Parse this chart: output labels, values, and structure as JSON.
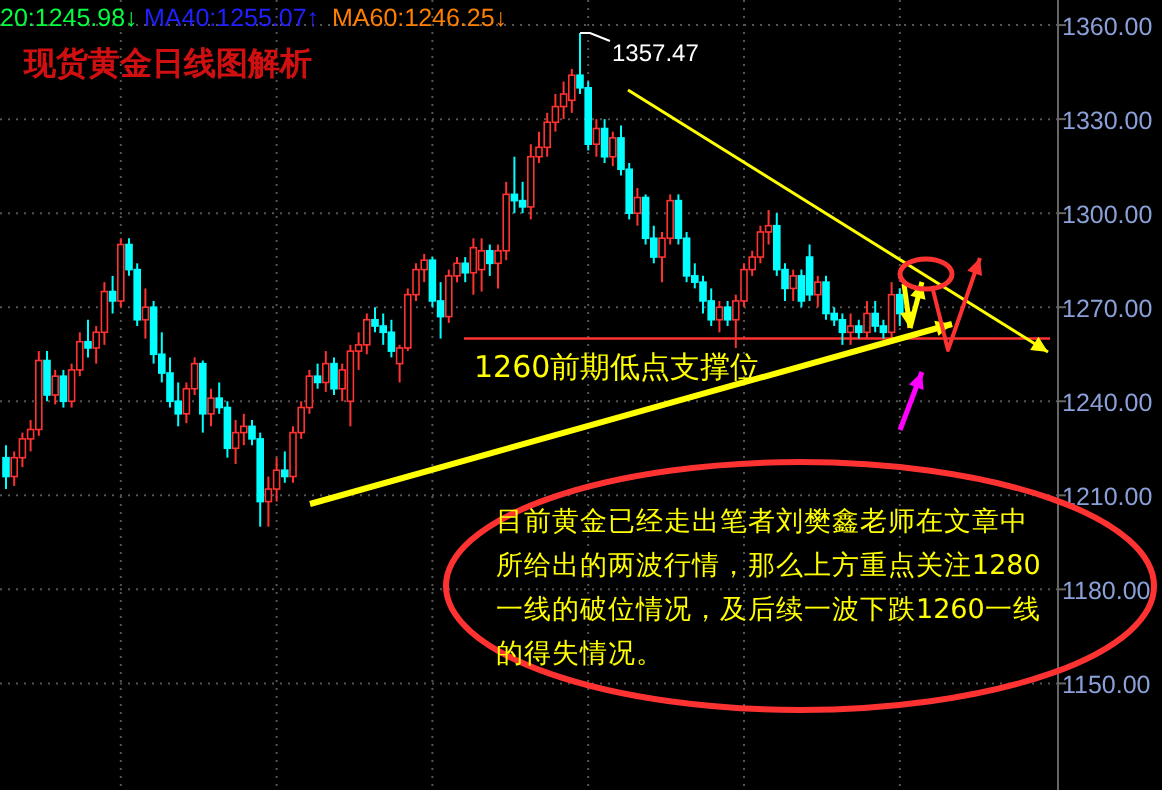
{
  "chart_data": {
    "type": "candlestick",
    "title": "现货黄金日线图解析",
    "categories": [
      null,
      null,
      null,
      null,
      null,
      null,
      null,
      null,
      null,
      null,
      null,
      null,
      null,
      null,
      null,
      null,
      null,
      null,
      null,
      null,
      null,
      null,
      null,
      null,
      null,
      null,
      null,
      null,
      null,
      null,
      null,
      null,
      null,
      null,
      null,
      null,
      null,
      null,
      null,
      null,
      null,
      null,
      null,
      null,
      null,
      null,
      null,
      null,
      null,
      null,
      null,
      null,
      null,
      null,
      null,
      null,
      null,
      null,
      null,
      null,
      null,
      null,
      null,
      null,
      null,
      null,
      null,
      null,
      null,
      null,
      null,
      null,
      null,
      null,
      null,
      null,
      null,
      null,
      null,
      null,
      null,
      null,
      null,
      null,
      null,
      null,
      null,
      null,
      null,
      null,
      null,
      null,
      null,
      null,
      null,
      null,
      null,
      null,
      null,
      null,
      null,
      null,
      null,
      null,
      null,
      null,
      null,
      null,
      null,
      null,
      null,
      null,
      null,
      null,
      null,
      null,
      null,
      null,
      null,
      null,
      null,
      null,
      null,
      null,
      null,
      null,
      null,
      null
    ],
    "ohlc": [
      [
        1222,
        1226,
        1212,
        1216
      ],
      [
        1216,
        1224,
        1213,
        1222
      ],
      [
        1222,
        1230,
        1219,
        1228
      ],
      [
        1228,
        1234,
        1224,
        1231
      ],
      [
        1231,
        1256,
        1229,
        1253
      ],
      [
        1253,
        1256,
        1240,
        1242
      ],
      [
        1242,
        1250,
        1239,
        1248
      ],
      [
        1248,
        1250,
        1238,
        1240
      ],
      [
        1240,
        1252,
        1238,
        1250
      ],
      [
        1250,
        1262,
        1248,
        1259
      ],
      [
        1259,
        1266,
        1254,
        1257
      ],
      [
        1257,
        1264,
        1252,
        1262
      ],
      [
        1262,
        1278,
        1258,
        1275
      ],
      [
        1275,
        1280,
        1268,
        1272
      ],
      [
        1272,
        1292,
        1270,
        1290
      ],
      [
        1290,
        1292,
        1280,
        1282
      ],
      [
        1282,
        1284,
        1264,
        1266
      ],
      [
        1266,
        1276,
        1260,
        1270
      ],
      [
        1270,
        1272,
        1252,
        1255
      ],
      [
        1255,
        1262,
        1246,
        1249
      ],
      [
        1249,
        1254,
        1238,
        1240
      ],
      [
        1240,
        1246,
        1232,
        1236
      ],
      [
        1236,
        1246,
        1233,
        1244
      ],
      [
        1244,
        1254,
        1242,
        1252
      ],
      [
        1252,
        1253,
        1230,
        1236
      ],
      [
        1236,
        1244,
        1232,
        1241
      ],
      [
        1241,
        1246,
        1236,
        1238
      ],
      [
        1238,
        1240,
        1222,
        1225
      ],
      [
        1225,
        1234,
        1220,
        1230
      ],
      [
        1230,
        1236,
        1226,
        1232
      ],
      [
        1232,
        1234,
        1226,
        1228
      ],
      [
        1228,
        1230,
        1200,
        1208
      ],
      [
        1208,
        1216,
        1200,
        1212
      ],
      [
        1212,
        1222,
        1208,
        1218
      ],
      [
        1218,
        1224,
        1214,
        1216
      ],
      [
        1216,
        1232,
        1214,
        1230
      ],
      [
        1230,
        1240,
        1228,
        1238
      ],
      [
        1238,
        1250,
        1236,
        1248
      ],
      [
        1248,
        1252,
        1244,
        1246
      ],
      [
        1246,
        1256,
        1243,
        1252
      ],
      [
        1252,
        1254,
        1242,
        1244
      ],
      [
        1244,
        1252,
        1240,
        1250
      ],
      [
        1240,
        1258,
        1232,
        1256
      ],
      [
        1256,
        1262,
        1250,
        1258
      ],
      [
        1258,
        1268,
        1255,
        1266
      ],
      [
        1266,
        1270,
        1262,
        1264
      ],
      [
        1264,
        1268,
        1258,
        1262
      ],
      [
        1262,
        1266,
        1254,
        1256
      ],
      [
        1252,
        1258,
        1246,
        1257
      ],
      [
        1257,
        1276,
        1256,
        1274
      ],
      [
        1274,
        1284,
        1272,
        1282
      ],
      [
        1282,
        1287,
        1278,
        1285
      ],
      [
        1285,
        1286,
        1270,
        1272
      ],
      [
        1272,
        1278,
        1260,
        1267
      ],
      [
        1267,
        1282,
        1265,
        1280
      ],
      [
        1280,
        1286,
        1278,
        1284
      ],
      [
        1284,
        1286,
        1278,
        1281
      ],
      [
        1281,
        1292,
        1274,
        1289
      ],
      [
        1282,
        1292,
        1275,
        1288
      ],
      [
        1288,
        1290,
        1280,
        1284
      ],
      [
        1284,
        1290,
        1276,
        1288
      ],
      [
        1288,
        1310,
        1285,
        1306
      ],
      [
        1306,
        1318,
        1300,
        1304
      ],
      [
        1304,
        1310,
        1300,
        1302
      ],
      [
        1302,
        1322,
        1298,
        1318
      ],
      [
        1318,
        1326,
        1316,
        1321
      ],
      [
        1321,
        1332,
        1318,
        1329
      ],
      [
        1329,
        1338,
        1326,
        1334
      ],
      [
        1334,
        1342,
        1330,
        1338
      ],
      [
        1336,
        1346,
        1332,
        1344
      ],
      [
        1344,
        1357.47,
        1338,
        1340
      ],
      [
        1340,
        1342,
        1320,
        1322
      ],
      [
        1322,
        1330,
        1318,
        1327
      ],
      [
        1327,
        1330,
        1316,
        1318
      ],
      [
        1318,
        1326,
        1315,
        1324
      ],
      [
        1324,
        1328,
        1312,
        1314
      ],
      [
        1314,
        1316,
        1298,
        1300
      ],
      [
        1300,
        1308,
        1296,
        1305
      ],
      [
        1305,
        1306,
        1290,
        1292
      ],
      [
        1292,
        1296,
        1284,
        1286
      ],
      [
        1286,
        1294,
        1278,
        1292
      ],
      [
        1292,
        1306,
        1290,
        1304
      ],
      [
        1304,
        1306,
        1290,
        1292
      ],
      [
        1292,
        1294,
        1278,
        1280
      ],
      [
        1280,
        1284,
        1276,
        1278
      ],
      [
        1278,
        1280,
        1268,
        1272
      ],
      [
        1272,
        1276,
        1264,
        1266
      ],
      [
        1266,
        1272,
        1262,
        1270
      ],
      [
        1270,
        1272,
        1264,
        1266
      ],
      [
        1266,
        1274,
        1257,
        1272
      ],
      [
        1272,
        1284,
        1270,
        1282
      ],
      [
        1282,
        1288,
        1280,
        1286
      ],
      [
        1286,
        1296,
        1284,
        1294
      ],
      [
        1294,
        1301,
        1290,
        1296
      ],
      [
        1296,
        1300,
        1280,
        1282
      ],
      [
        1282,
        1284,
        1272,
        1276
      ],
      [
        1276,
        1282,
        1272,
        1280
      ],
      [
        1280,
        1282,
        1270,
        1272
      ],
      [
        1286,
        1290,
        1272,
        1274
      ],
      [
        1274,
        1280,
        1270,
        1278
      ],
      [
        1278,
        1280,
        1266,
        1268
      ],
      [
        1268,
        1270,
        1264,
        1266
      ],
      [
        1266,
        1268,
        1258,
        1262
      ],
      [
        1262,
        1268,
        1258,
        1264
      ],
      [
        1264,
        1266,
        1260,
        1262
      ],
      [
        1262,
        1272,
        1260,
        1268
      ],
      [
        1268,
        1272,
        1262,
        1264
      ],
      [
        1264,
        1266,
        1260,
        1262
      ],
      [
        1262,
        1278,
        1260,
        1274
      ],
      [
        1274,
        1276,
        1264,
        1268
      ],
      null,
      null,
      null,
      null,
      null,
      null,
      null,
      null,
      null,
      null,
      null,
      null,
      null,
      null,
      null,
      null,
      null,
      null
    ],
    "colors": [
      "#00ffff",
      "#ff3232",
      "#ff3232",
      "#ff3232",
      "#ff3232",
      "#00ffff",
      "#ff3232",
      "#00ffff",
      "#ff3232",
      "#ff3232",
      "#00ffff",
      "#ff3232",
      "#ff3232",
      "#00ffff",
      "#ff3232",
      "#00ffff",
      "#00ffff",
      "#ff3232",
      "#00ffff",
      "#00ffff",
      "#00ffff",
      "#00ffff",
      "#ff3232",
      "#ff3232",
      "#00ffff",
      "#ff3232",
      "#00ffff",
      "#00ffff",
      "#ff3232",
      "#ff3232",
      "#00ffff",
      "#00ffff",
      "#ff3232",
      "#ff3232",
      "#00ffff",
      "#ff3232",
      "#ff3232",
      "#ff3232",
      "#00ffff",
      "#ff3232",
      "#00ffff",
      "#ff3232",
      "#ff3232",
      "#ff3232",
      "#ff3232",
      "#00ffff",
      "#00ffff",
      "#00ffff",
      "#ff3232",
      "#ff3232",
      "#ff3232",
      "#ff3232",
      "#00ffff",
      "#00ffff",
      "#ff3232",
      "#ff3232",
      "#00ffff",
      "#ff3232",
      "#ff3232",
      "#00ffff",
      "#ff3232",
      "#ff3232",
      "#00ffff",
      "#00ffff",
      "#ff3232",
      "#ff3232",
      "#ff3232",
      "#ff3232",
      "#ff3232",
      "#ff3232",
      "#00ffff",
      "#00ffff",
      "#ff3232",
      "#00ffff",
      "#ff3232",
      "#00ffff",
      "#00ffff",
      "#ff3232",
      "#00ffff",
      "#00ffff",
      "#ff3232",
      "#ff3232",
      "#00ffff",
      "#00ffff",
      "#00ffff",
      "#00ffff",
      "#00ffff",
      "#ff3232",
      "#00ffff",
      "#ff3232",
      "#ff3232",
      "#ff3232",
      "#ff3232",
      "#ff3232",
      "#00ffff",
      "#00ffff",
      "#ff3232",
      "#00ffff",
      "#00ffff",
      "#ff3232",
      "#00ffff",
      "#00ffff",
      "#00ffff",
      "#ff3232",
      "#00ffff",
      "#ff3232",
      "#00ffff",
      "#00ffff",
      "#ff3232",
      "#00ffff",
      null,
      null,
      null,
      null,
      null,
      null,
      null,
      null,
      null,
      null,
      null,
      null,
      null,
      null,
      null,
      null,
      null,
      null
    ],
    "ylim": [
      1116,
      1368
    ],
    "yticks": [
      {
        "value": 1150,
        "label": "1150.00"
      },
      {
        "value": 1180,
        "label": "1180.00"
      },
      {
        "value": 1210,
        "label": "1210.00"
      },
      {
        "value": 1240,
        "label": "1240.00"
      },
      {
        "value": 1270,
        "label": "1270.00"
      },
      {
        "value": 1300,
        "label": "1300.00"
      },
      {
        "value": 1330,
        "label": "1330.00"
      },
      {
        "value": 1360,
        "label": "1360.00"
      }
    ],
    "grid": true,
    "ref_lines": [
      {
        "axis": "y",
        "value": 1260,
        "label": "1260前期低点支撑位",
        "color": "#ff3232"
      }
    ],
    "annotations": [
      "20:1245.98↓",
      "MA40:1255.07↑",
      "MA60:1246.25↓",
      "1357.47",
      "目前黄金已经走出笔者刘樊鑫老师在文章中所给出的两波行情，那么上方重点关注1280一线的破位情况，及后续一波下跌1260一线的得失情况。"
    ]
  }
}
